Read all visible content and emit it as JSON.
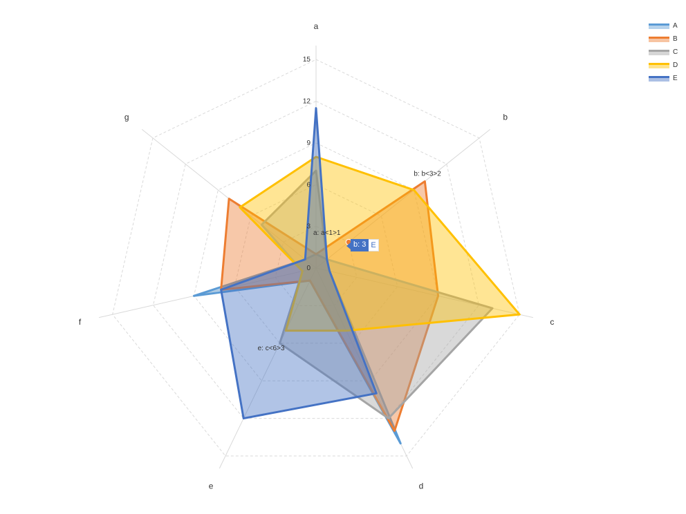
{
  "chart_data": {
    "type": "radar",
    "axes": [
      "a",
      "b",
      "c",
      "d",
      "e",
      "f",
      "g"
    ],
    "tick_labels": [
      "0",
      "3",
      "6",
      "9",
      "12",
      "15"
    ],
    "rmax": 16,
    "series": [
      {
        "name": "A",
        "color": "#5B9BD5",
        "values": [
          1,
          1,
          1,
          14,
          1,
          9,
          1
        ]
      },
      {
        "name": "B",
        "color": "#ED7D31",
        "values": [
          1,
          10,
          9,
          13,
          1,
          7,
          8
        ]
      },
      {
        "name": "C",
        "color": "#A5A5A5",
        "values": [
          7,
          1,
          13,
          12,
          6,
          1,
          5
        ]
      },
      {
        "name": "D",
        "color": "#FFC000",
        "values": [
          8,
          9,
          15,
          5,
          5,
          1,
          7
        ]
      },
      {
        "name": "E",
        "color": "#4472C4",
        "values": [
          11.5,
          1,
          1,
          10,
          12,
          7,
          1
        ]
      }
    ],
    "annotations": [
      {
        "text": "a: a<1>1",
        "series": "A",
        "axis": "a"
      },
      {
        "text": "b: b<3>2",
        "series": "B",
        "axis": "b"
      },
      {
        "text": "e: c<6>3",
        "series": "C",
        "axis": "e"
      }
    ],
    "legend_position": "top-right",
    "grid": true
  },
  "tooltip": {
    "value": "b: 3",
    "series": "E"
  }
}
